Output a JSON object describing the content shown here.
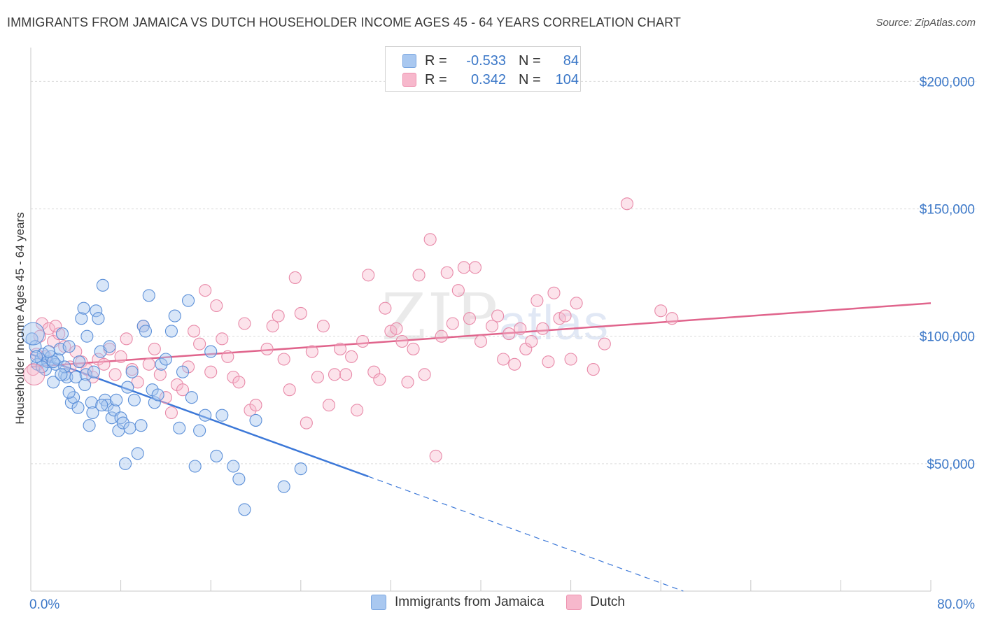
{
  "header": {
    "title": "IMMIGRANTS FROM JAMAICA VS DUTCH HOUSEHOLDER INCOME AGES 45 - 64 YEARS CORRELATION CHART",
    "source": "Source: ZipAtlas.com"
  },
  "watermark": {
    "zip": "ZIP",
    "atlas": "atlas"
  },
  "legend": {
    "r_label": "R =",
    "n_label": "N =",
    "rows": [
      {
        "r": "-0.533",
        "n": "84",
        "color": "#a9c8f0"
      },
      {
        "r": "0.342",
        "n": "104",
        "color": "#f7b8cc"
      }
    ]
  },
  "chart_data": {
    "type": "scatter",
    "xlabel": "",
    "ylabel": "Householder Income Ages 45 - 64 years",
    "x_tick_labels": [
      "0.0%",
      "80.0%"
    ],
    "y_tick_labels": [
      "$50,000",
      "$100,000",
      "$150,000",
      "$200,000"
    ],
    "xlim": [
      0,
      80
    ],
    "ylim": [
      0,
      210000
    ],
    "grid": true,
    "legend_position": "bottom",
    "colors": {
      "blue": "#3c78d8",
      "pink": "#e0648c",
      "blue_fill": "#a9c8f0",
      "pink_fill": "#f7b8cc"
    },
    "series": [
      {
        "name": "Immigrants from Jamaica",
        "trend": {
          "x": [
            0,
            30
          ],
          "y": [
            93000,
            45000
          ],
          "dashed_to": {
            "x": 58,
            "y": 0
          }
        },
        "points": [
          [
            0.1,
            99000
          ],
          [
            0.4,
            96000
          ],
          [
            0.6,
            89000
          ],
          [
            0.9,
            91000
          ],
          [
            1.1,
            93000
          ],
          [
            1.3,
            87000
          ],
          [
            1.5,
            90000
          ],
          [
            1.8,
            92000
          ],
          [
            2.0,
            82000
          ],
          [
            2.2,
            89000
          ],
          [
            2.4,
            91000
          ],
          [
            2.6,
            95000
          ],
          [
            2.8,
            101000
          ],
          [
            3.0,
            85000
          ],
          [
            3.2,
            84000
          ],
          [
            3.4,
            96000
          ],
          [
            3.6,
            74000
          ],
          [
            3.8,
            76000
          ],
          [
            4.0,
            84000
          ],
          [
            4.2,
            72000
          ],
          [
            4.3,
            90000
          ],
          [
            4.5,
            107000
          ],
          [
            4.7,
            111000
          ],
          [
            4.9,
            85000
          ],
          [
            5.0,
            100000
          ],
          [
            5.2,
            65000
          ],
          [
            5.4,
            74000
          ],
          [
            5.6,
            86000
          ],
          [
            5.8,
            110000
          ],
          [
            6.0,
            107000
          ],
          [
            6.2,
            94000
          ],
          [
            6.4,
            120000
          ],
          [
            6.6,
            75000
          ],
          [
            6.8,
            73000
          ],
          [
            7.0,
            96000
          ],
          [
            7.2,
            68000
          ],
          [
            7.4,
            71000
          ],
          [
            7.6,
            75000
          ],
          [
            7.8,
            63000
          ],
          [
            8.0,
            68000
          ],
          [
            8.2,
            66000
          ],
          [
            8.4,
            50000
          ],
          [
            8.6,
            80000
          ],
          [
            8.8,
            64000
          ],
          [
            9.0,
            86000
          ],
          [
            9.2,
            75000
          ],
          [
            9.5,
            54000
          ],
          [
            9.8,
            65000
          ],
          [
            10.0,
            104000
          ],
          [
            10.2,
            102000
          ],
          [
            10.5,
            116000
          ],
          [
            10.8,
            79000
          ],
          [
            11.0,
            74000
          ],
          [
            11.3,
            77000
          ],
          [
            11.6,
            89000
          ],
          [
            12.0,
            91000
          ],
          [
            12.5,
            102000
          ],
          [
            12.8,
            108000
          ],
          [
            13.2,
            64000
          ],
          [
            13.5,
            86000
          ],
          [
            14.0,
            114000
          ],
          [
            14.3,
            76000
          ],
          [
            14.6,
            49000
          ],
          [
            15.0,
            63000
          ],
          [
            15.5,
            69000
          ],
          [
            16.0,
            94000
          ],
          [
            16.5,
            53000
          ],
          [
            17.0,
            69000
          ],
          [
            18.0,
            49000
          ],
          [
            18.5,
            44000
          ],
          [
            19.0,
            32000
          ],
          [
            20.0,
            67000
          ],
          [
            22.5,
            41000
          ],
          [
            24.0,
            48000
          ],
          [
            1.0,
            88000
          ],
          [
            2.0,
            90000
          ],
          [
            3.0,
            88000
          ],
          [
            0.5,
            92000
          ],
          [
            1.6,
            94000
          ],
          [
            2.7,
            85000
          ],
          [
            3.4,
            78000
          ],
          [
            4.8,
            81000
          ],
          [
            5.5,
            70000
          ],
          [
            6.3,
            73000
          ]
        ]
      },
      {
        "name": "Dutch",
        "trend": {
          "x": [
            0,
            80
          ],
          "y": [
            88000,
            113000
          ]
        },
        "points": [
          [
            0.2,
            87000
          ],
          [
            0.5,
            93000
          ],
          [
            0.8,
            100000
          ],
          [
            1.0,
            105000
          ],
          [
            1.3,
            92000
          ],
          [
            1.6,
            103000
          ],
          [
            2.0,
            98000
          ],
          [
            2.5,
            101000
          ],
          [
            3.0,
            96000
          ],
          [
            3.5,
            88000
          ],
          [
            4.0,
            94000
          ],
          [
            4.5,
            90000
          ],
          [
            5.0,
            87000
          ],
          [
            5.5,
            84000
          ],
          [
            6.0,
            91000
          ],
          [
            6.5,
            89000
          ],
          [
            7.0,
            95000
          ],
          [
            7.5,
            85000
          ],
          [
            8.0,
            92000
          ],
          [
            8.5,
            99000
          ],
          [
            9.0,
            87000
          ],
          [
            9.5,
            82000
          ],
          [
            10.0,
            104000
          ],
          [
            10.5,
            89000
          ],
          [
            11.0,
            95000
          ],
          [
            11.5,
            85000
          ],
          [
            12.0,
            76000
          ],
          [
            12.5,
            70000
          ],
          [
            13.0,
            81000
          ],
          [
            13.5,
            79000
          ],
          [
            14.0,
            88000
          ],
          [
            14.5,
            102000
          ],
          [
            15.0,
            97000
          ],
          [
            15.5,
            118000
          ],
          [
            16.0,
            86000
          ],
          [
            16.5,
            112000
          ],
          [
            17.0,
            99000
          ],
          [
            17.5,
            92000
          ],
          [
            18.0,
            84000
          ],
          [
            18.5,
            82000
          ],
          [
            19.0,
            105000
          ],
          [
            19.5,
            71000
          ],
          [
            20.0,
            73000
          ],
          [
            21.0,
            95000
          ],
          [
            21.5,
            104000
          ],
          [
            22.0,
            108000
          ],
          [
            22.5,
            91000
          ],
          [
            23.0,
            79000
          ],
          [
            23.5,
            123000
          ],
          [
            24.0,
            109000
          ],
          [
            24.5,
            66000
          ],
          [
            25.0,
            94000
          ],
          [
            25.5,
            84000
          ],
          [
            26.0,
            104000
          ],
          [
            26.5,
            73000
          ],
          [
            27.0,
            85000
          ],
          [
            27.5,
            95000
          ],
          [
            28.0,
            85000
          ],
          [
            28.5,
            92000
          ],
          [
            29.0,
            71000
          ],
          [
            29.5,
            98000
          ],
          [
            30.0,
            124000
          ],
          [
            30.5,
            86000
          ],
          [
            31.0,
            83000
          ],
          [
            31.5,
            111000
          ],
          [
            32.0,
            102000
          ],
          [
            32.5,
            103000
          ],
          [
            33.0,
            98000
          ],
          [
            33.5,
            82000
          ],
          [
            34.0,
            95000
          ],
          [
            34.5,
            124000
          ],
          [
            35.0,
            85000
          ],
          [
            35.5,
            138000
          ],
          [
            36.0,
            53000
          ],
          [
            36.5,
            100000
          ],
          [
            37.0,
            125000
          ],
          [
            37.5,
            105000
          ],
          [
            38.0,
            118000
          ],
          [
            38.5,
            127000
          ],
          [
            39.0,
            107000
          ],
          [
            39.5,
            127000
          ],
          [
            40.0,
            98000
          ],
          [
            41.0,
            104000
          ],
          [
            41.5,
            108000
          ],
          [
            42.0,
            91000
          ],
          [
            42.5,
            101000
          ],
          [
            43.0,
            89000
          ],
          [
            43.5,
            103000
          ],
          [
            44.0,
            95000
          ],
          [
            44.5,
            98000
          ],
          [
            45.0,
            114000
          ],
          [
            45.5,
            103000
          ],
          [
            46.0,
            90000
          ],
          [
            46.5,
            117000
          ],
          [
            47.0,
            107000
          ],
          [
            47.5,
            108000
          ],
          [
            48.0,
            91000
          ],
          [
            48.5,
            113000
          ],
          [
            50.0,
            87000
          ],
          [
            51.0,
            97000
          ],
          [
            53.0,
            152000
          ],
          [
            56.0,
            110000
          ],
          [
            57.0,
            107000
          ],
          [
            2.2,
            104000
          ]
        ]
      }
    ]
  }
}
